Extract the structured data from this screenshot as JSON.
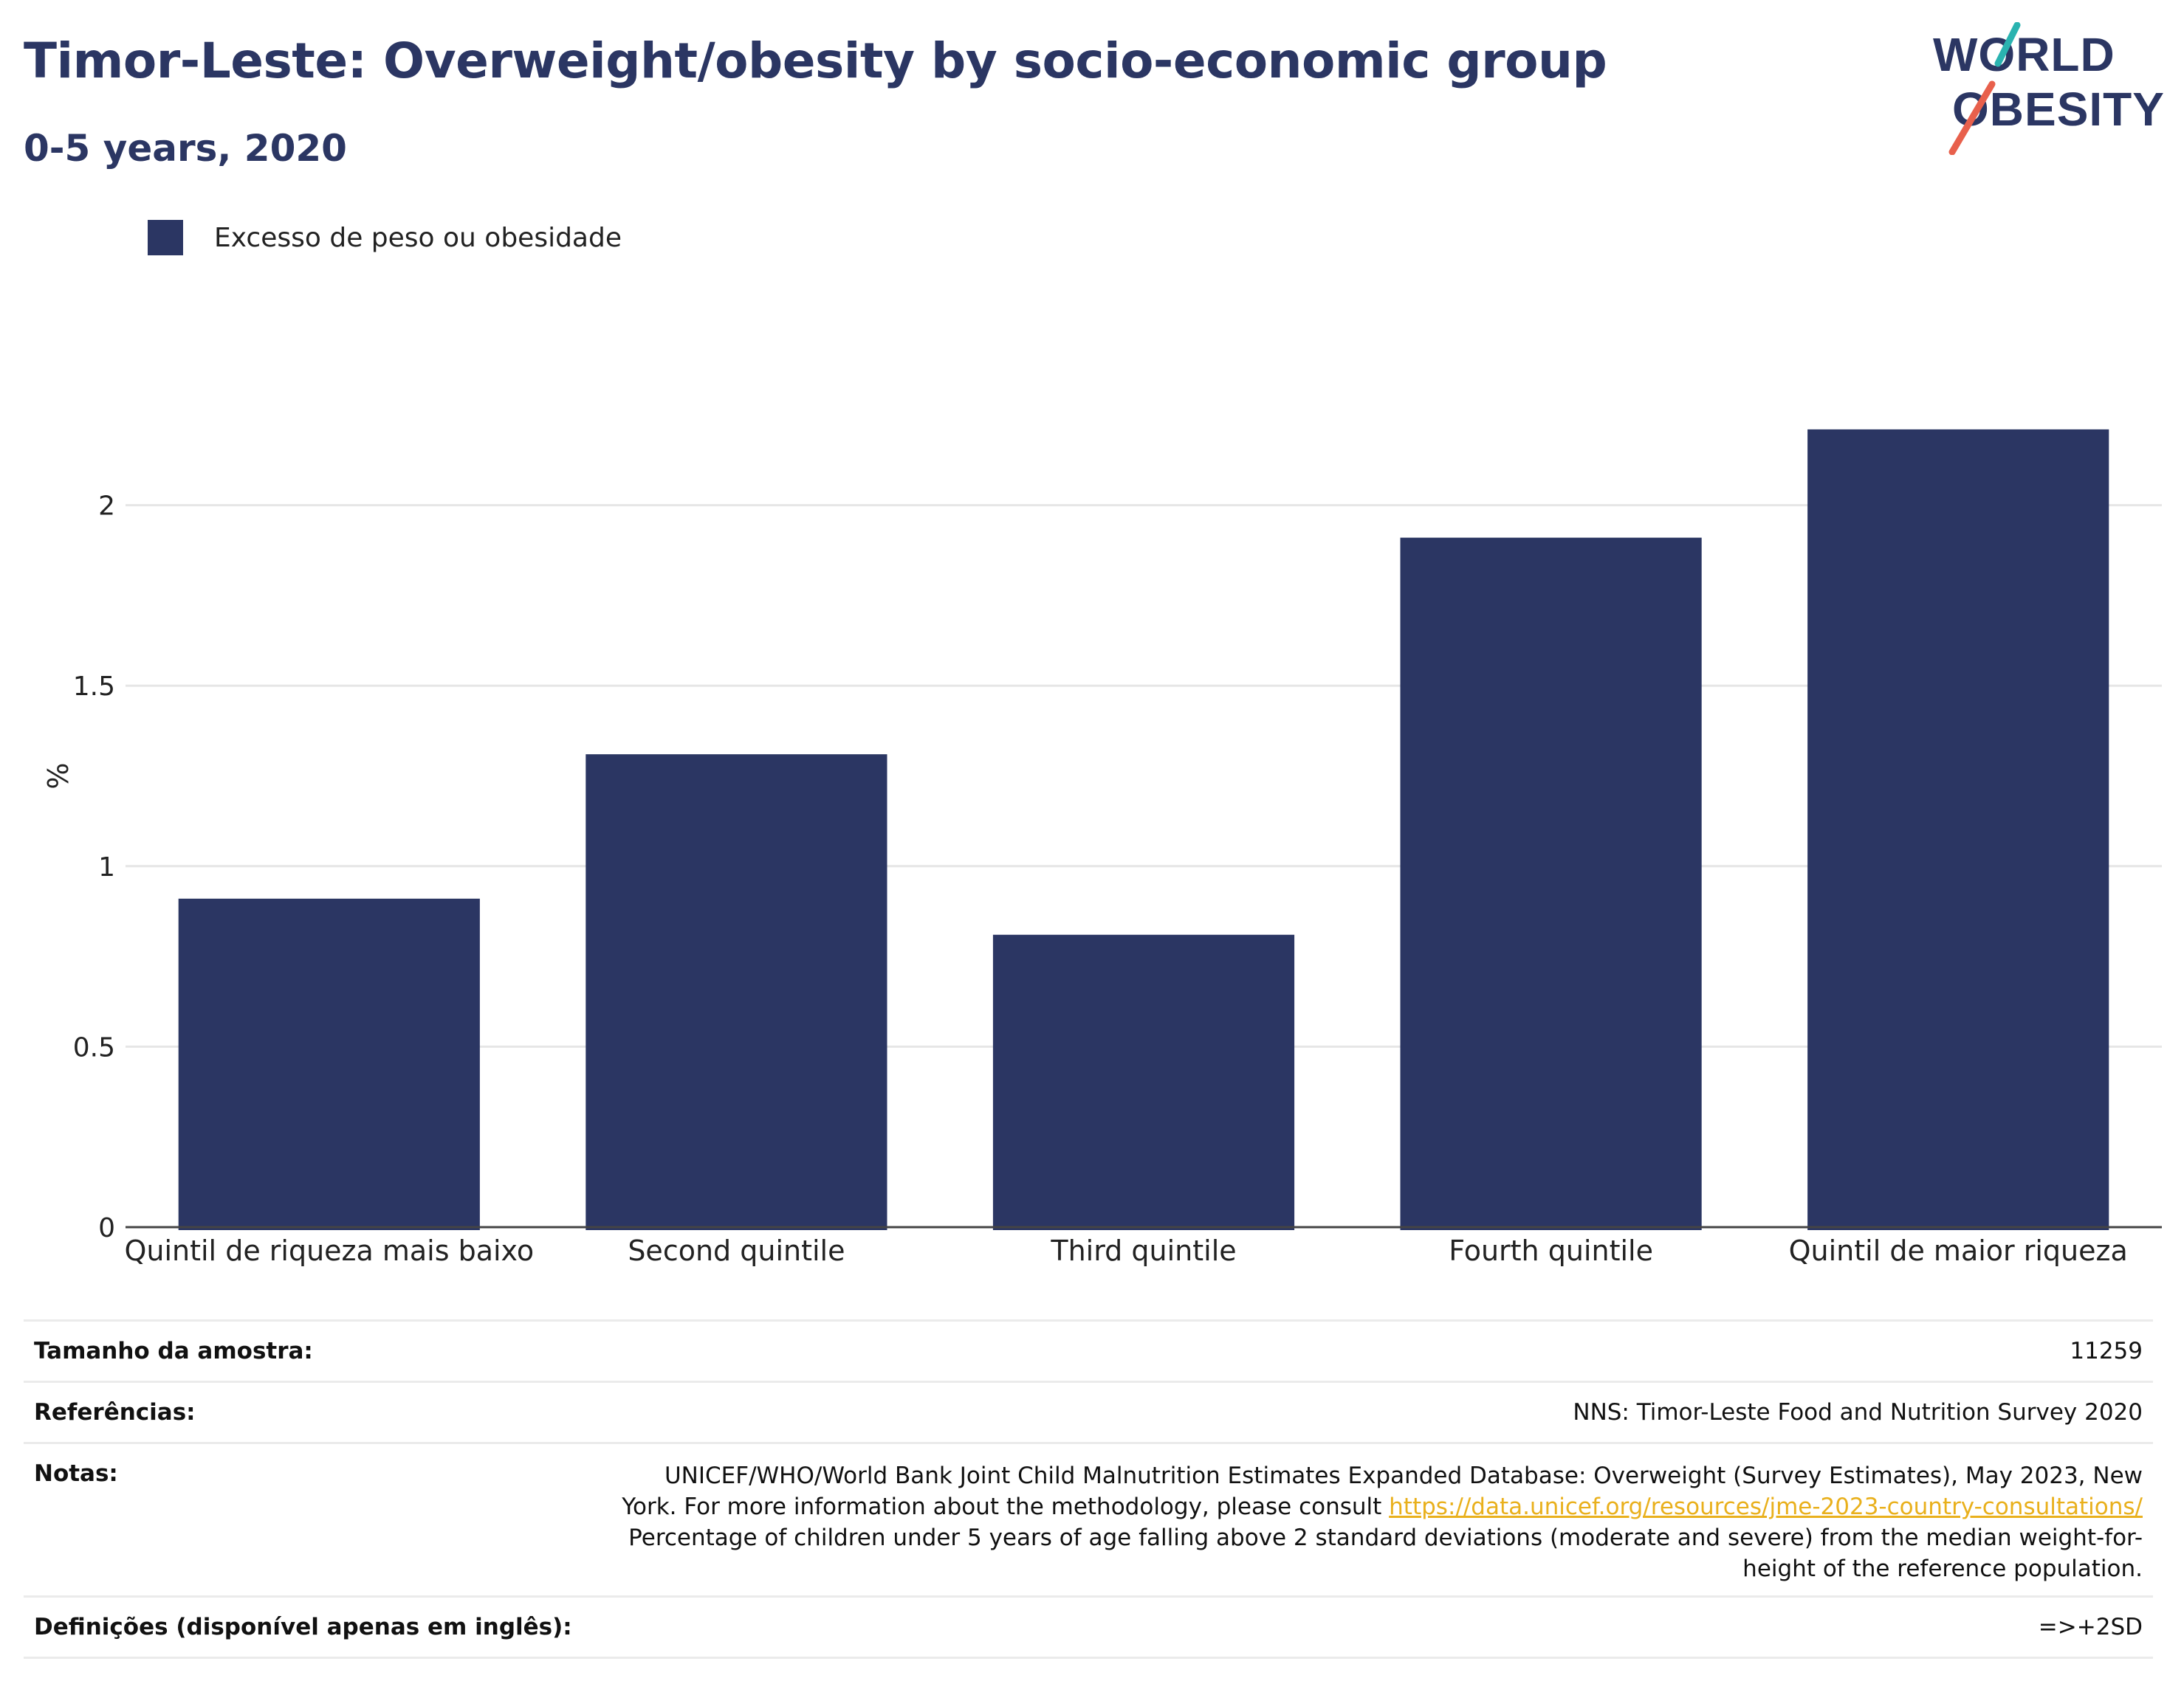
{
  "header": {
    "title": "Timor-Leste: Overweight/obesity by socio-economic group",
    "subtitle": "0-5 years, 2020"
  },
  "logo": {
    "line1": "WORLD",
    "line2": "OBESITY",
    "accent_colors": [
      "#2ab3b0",
      "#e8604c"
    ]
  },
  "legend": {
    "label": "Excesso de peso ou obesidade",
    "color": "#2b3663"
  },
  "chart_data": {
    "type": "bar",
    "categories": [
      "Quintil de riqueza mais baixo",
      "Second quintile",
      "Third quintile",
      "Fourth quintile",
      "Quintil de maior riqueza"
    ],
    "series": [
      {
        "name": "Excesso de peso ou obesidade",
        "values": [
          0.91,
          1.31,
          0.81,
          1.91,
          2.21
        ],
        "color": "#2b3663"
      }
    ],
    "ylabel": "%",
    "ylim": [
      0,
      2.5
    ],
    "yticks": [
      0,
      0.5,
      1,
      1.5,
      2
    ],
    "ytick_labels": [
      "0",
      "0.5",
      "1",
      "1.5",
      "2"
    ],
    "grid": true
  },
  "table": {
    "sample_label": "Tamanho da amostra:",
    "sample_value": "11259",
    "refs_label": "Referências:",
    "refs_value": "NNS: Timor-Leste Food and Nutrition Survey 2020",
    "notes_label": "Notas:",
    "notes_text1": "UNICEF/WHO/World Bank Joint Child Malnutrition Estimates Expanded Database: Overweight (Survey Estimates), May 2023, New York. For more information about the methodology, please consult ",
    "notes_link": "https://data.unicef.org/resources/jme-2023-country-consultations/",
    "notes_text2": "Percentage of children under 5 years of age falling above 2 standard deviations (moderate and severe) from the median weight-for-height of the reference population.",
    "defs_label": "Definições (disponível apenas em inglês):",
    "defs_value": "=>+2SD"
  }
}
